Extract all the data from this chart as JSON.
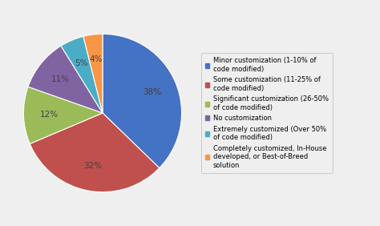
{
  "labels": [
    "Minor customization (1-10% of\ncode modified)",
    "Some customization (11-25% of\ncode modified)",
    "Significant customization (26-50%\nof code modified)",
    "No customization",
    "Extremely customized (Over 50%\nof code modified)",
    "Completely customized, In-House\ndeveloped, or Best-of-Breed\nsolution"
  ],
  "values": [
    38,
    32,
    12,
    11,
    5,
    4
  ],
  "colors": [
    "#4472C4",
    "#C0504D",
    "#9BBB59",
    "#8064A2",
    "#4BACC6",
    "#F79646"
  ],
  "pct_labels": [
    "38%",
    "32%",
    "12%",
    "11%",
    "5%",
    "4%"
  ],
  "background_color": "#EFEFEF",
  "startangle": 90,
  "pct_color": "#404040",
  "pct_fontsize": 7.5,
  "legend_fontsize": 6.0
}
